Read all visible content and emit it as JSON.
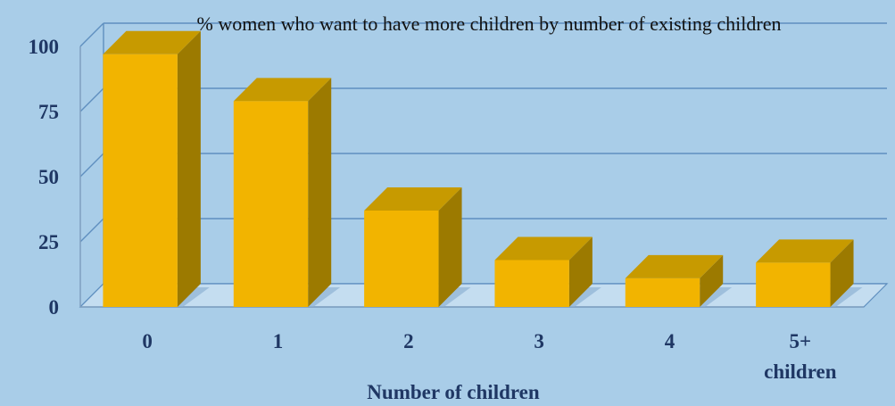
{
  "chart_data": {
    "type": "bar",
    "title": "% women who want to have more  children by number of existing children",
    "xlabel": "Number of children",
    "ylabel": "",
    "categories": [
      "0",
      "1",
      "2",
      "3",
      "4",
      "5+\nchildren"
    ],
    "values": [
      97,
      79,
      37,
      18,
      11,
      17
    ],
    "ylim": [
      0,
      100
    ],
    "yticks": [
      0,
      25,
      50,
      75,
      100
    ],
    "grid": true,
    "style": "3d-column",
    "colors": {
      "bar_front": "#f2b400",
      "bar_top": "#c79a00",
      "bar_side": "#9c7a00",
      "background": "#a9cde8",
      "gridline": "#5f8fbf",
      "text": "#1f3764"
    }
  }
}
